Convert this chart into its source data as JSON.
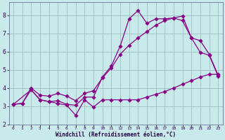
{
  "background_color": "#c8eaea",
  "grid_color": "#a0c0c0",
  "line_color": "#880088",
  "xlabel": "Windchill (Refroidissement éolien,°C)",
  "xlim": [
    -0.5,
    23.5
  ],
  "ylim": [
    2.0,
    8.7
  ],
  "xticks": [
    0,
    1,
    2,
    3,
    4,
    5,
    6,
    7,
    8,
    9,
    10,
    11,
    12,
    13,
    14,
    15,
    16,
    17,
    18,
    19,
    20,
    21,
    22,
    23
  ],
  "yticks": [
    2,
    3,
    4,
    5,
    6,
    7,
    8
  ],
  "line1_x": [
    0,
    1,
    2,
    3,
    4,
    5,
    6,
    7,
    8,
    9,
    10,
    11,
    12,
    13,
    14,
    15,
    16,
    17,
    18,
    19,
    20,
    21,
    22,
    23
  ],
  "line1_y": [
    3.1,
    3.15,
    3.9,
    3.35,
    3.25,
    3.15,
    3.05,
    2.5,
    3.35,
    2.95,
    3.35,
    3.35,
    3.35,
    3.35,
    3.35,
    3.5,
    3.65,
    3.8,
    4.0,
    4.2,
    4.4,
    4.6,
    4.75,
    4.75
  ],
  "line2_x": [
    0,
    2,
    3,
    4,
    5,
    6,
    7,
    8,
    9,
    10,
    11,
    12,
    13,
    14,
    15,
    16,
    17,
    18,
    19,
    20,
    21,
    22,
    23
  ],
  "line2_y": [
    3.1,
    3.9,
    3.35,
    3.25,
    3.3,
    3.1,
    3.05,
    3.5,
    3.5,
    4.6,
    5.2,
    6.3,
    7.8,
    8.25,
    7.55,
    7.8,
    7.8,
    7.85,
    7.7,
    6.75,
    5.95,
    5.8,
    4.65
  ],
  "line3_x": [
    0,
    1,
    2,
    3,
    4,
    5,
    6,
    7,
    8,
    9,
    10,
    11,
    12,
    13,
    14,
    15,
    16,
    17,
    18,
    19,
    20,
    21,
    22,
    23
  ],
  "line3_y": [
    3.1,
    3.15,
    4.0,
    3.6,
    3.55,
    3.7,
    3.55,
    3.3,
    3.7,
    3.85,
    4.55,
    5.1,
    5.85,
    6.35,
    6.75,
    7.1,
    7.45,
    7.7,
    7.85,
    7.95,
    6.75,
    6.6,
    5.85,
    4.7
  ]
}
